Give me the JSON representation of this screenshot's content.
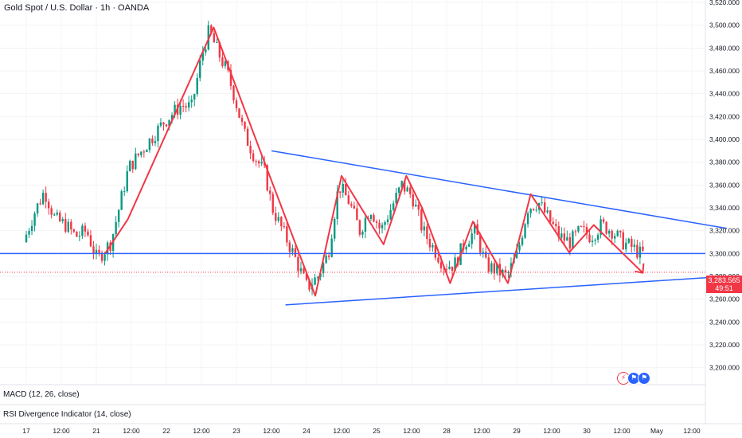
{
  "header": {
    "title": "Gold Spot / U.S. Dollar · 1h · OANDA"
  },
  "indicators": [
    {
      "label": "MACD (12, 26, close)"
    },
    {
      "label": "RSI Divergence Indicator (14, close)"
    }
  ],
  "price_tag": {
    "price": "3,283.565",
    "countdown": "49:51"
  },
  "colors": {
    "up": "#089981",
    "down": "#f23645",
    "trendline": "#2962ff",
    "zigzag": "#f23645"
  },
  "icons": [
    "lightning-icon",
    "flag-icon"
  ],
  "chart_data": {
    "type": "candlestick",
    "title": "Gold Spot / U.S. Dollar · 1h · OANDA",
    "ylim": [
      3190,
      3520
    ],
    "y_ticks": [
      "3,520.000",
      "3,500.000",
      "3,480.000",
      "3,460.000",
      "3,440.000",
      "3,420.000",
      "3,400.000",
      "3,380.000",
      "3,360.000",
      "3,340.000",
      "3,320.000",
      "3,300.000",
      "3,280.000",
      "3,260.000",
      "3,240.000",
      "3,220.000",
      "3,200.000"
    ],
    "x_ticks": [
      "17",
      "12:00",
      "21",
      "12:00",
      "22",
      "12:00",
      "23",
      "12:00",
      "24",
      "12:00",
      "25",
      "12:00",
      "28",
      "12:00",
      "29",
      "12:00",
      "30",
      "12:00",
      "May",
      "12:00"
    ],
    "x_range": [
      0,
      20
    ],
    "price_series": [
      [
        0.0,
        3310
      ],
      [
        0.3,
        3335
      ],
      [
        0.6,
        3355
      ],
      [
        0.9,
        3330
      ],
      [
        1.2,
        3325
      ],
      [
        1.5,
        3315
      ],
      [
        1.8,
        3320
      ],
      [
        2.1,
        3295
      ],
      [
        2.5,
        3310
      ],
      [
        3.0,
        3375
      ],
      [
        3.5,
        3395
      ],
      [
        4.0,
        3415
      ],
      [
        4.5,
        3430
      ],
      [
        4.8,
        3428
      ],
      [
        5.1,
        3475
      ],
      [
        5.3,
        3495
      ],
      [
        5.5,
        3480
      ],
      [
        5.8,
        3460
      ],
      [
        6.0,
        3440
      ],
      [
        6.3,
        3405
      ],
      [
        6.6,
        3385
      ],
      [
        6.9,
        3370
      ],
      [
        7.1,
        3340
      ],
      [
        7.4,
        3320
      ],
      [
        7.7,
        3300
      ],
      [
        8.1,
        3270
      ],
      [
        8.4,
        3280
      ],
      [
        8.7,
        3300
      ],
      [
        9.0,
        3360
      ],
      [
        9.3,
        3345
      ],
      [
        9.6,
        3320
      ],
      [
        9.9,
        3340
      ],
      [
        10.2,
        3320
      ],
      [
        10.5,
        3340
      ],
      [
        10.8,
        3360
      ],
      [
        11.1,
        3350
      ],
      [
        11.4,
        3320
      ],
      [
        11.7,
        3305
      ],
      [
        12.0,
        3290
      ],
      [
        12.3,
        3290
      ],
      [
        12.6,
        3310
      ],
      [
        12.9,
        3320
      ],
      [
        13.2,
        3290
      ],
      [
        13.5,
        3285
      ],
      [
        13.8,
        3280
      ],
      [
        14.1,
        3300
      ],
      [
        14.4,
        3340
      ],
      [
        14.7,
        3345
      ],
      [
        15.0,
        3330
      ],
      [
        15.3,
        3315
      ],
      [
        15.6,
        3310
      ],
      [
        15.9,
        3320
      ],
      [
        16.2,
        3315
      ],
      [
        16.5,
        3325
      ],
      [
        16.8,
        3320
      ],
      [
        17.1,
        3310
      ],
      [
        17.4,
        3305
      ],
      [
        17.6,
        3300
      ]
    ],
    "annotations": {
      "horizontal_line": 3300,
      "trendlines": [
        {
          "name": "upper",
          "points": [
            [
              7.0,
              3390
            ],
            [
              20.0,
              3322
            ]
          ]
        },
        {
          "name": "lower",
          "points": [
            [
              7.4,
              3255
            ],
            [
              20.0,
              3280
            ]
          ]
        }
      ],
      "zigzag": [
        [
          2.25,
          3300
        ],
        [
          2.9,
          3330
        ],
        [
          5.35,
          3498
        ],
        [
          6.8,
          3380
        ],
        [
          8.25,
          3263
        ],
        [
          9.0,
          3368
        ],
        [
          10.2,
          3308
        ],
        [
          10.85,
          3368
        ],
        [
          11.3,
          3340
        ],
        [
          12.1,
          3274
        ],
        [
          12.75,
          3328
        ],
        [
          13.75,
          3274
        ],
        [
          14.4,
          3352
        ],
        [
          15.5,
          3301
        ],
        [
          16.2,
          3325
        ],
        [
          17.6,
          3283
        ]
      ],
      "arrow_end": [
        17.6,
        3283
      ]
    }
  }
}
